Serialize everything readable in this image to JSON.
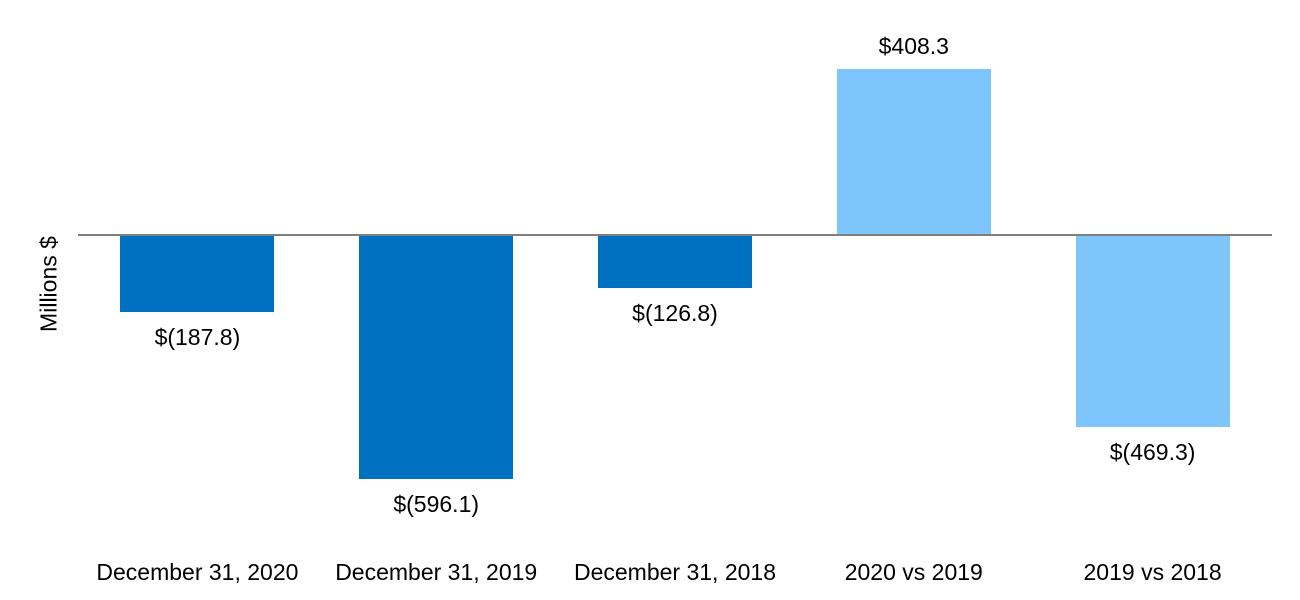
{
  "chart_data": {
    "type": "bar",
    "categories": [
      "December 31, 2020",
      "December 31, 2019",
      "December 31, 2018",
      "2020 vs 2019",
      "2019 vs 2018"
    ],
    "values": [
      -187.8,
      -596.1,
      -126.8,
      408.3,
      -469.3
    ],
    "data_labels": [
      "$(187.8)",
      "$(596.1)",
      "$(126.8)",
      "$408.3",
      "$(469.3)"
    ],
    "bar_colors": [
      "#0070C0",
      "#0070C0",
      "#0070C0",
      "#7EC5FB",
      "#7EC5FB"
    ],
    "title": "",
    "xlabel": "",
    "ylabel": "Millions $",
    "ylim": [
      -700,
      500
    ],
    "baseline_value": 0,
    "grid": false,
    "legend": null,
    "axis_line_color": "#7F7F7F",
    "text_color": "#000000",
    "background_color": "#FFFFFF"
  }
}
